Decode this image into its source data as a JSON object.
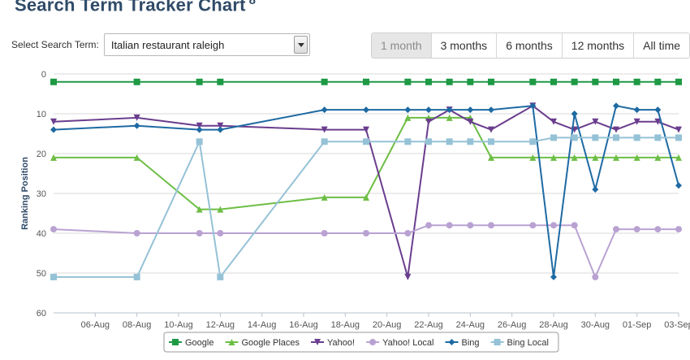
{
  "header": {
    "title": "Search Term Tracker Chart",
    "info_marker": "8"
  },
  "search": {
    "label": "Select Search Term:",
    "selected_value": "Italian restaurant raleigh"
  },
  "range": {
    "buttons": [
      "1 month",
      "3 months",
      "6 months",
      "12 months",
      "All time"
    ],
    "active": "1 month"
  },
  "chart_data": {
    "type": "line",
    "ylabel": "Ranking Position",
    "ylim": [
      0,
      60
    ],
    "y_reversed": true,
    "grid": true,
    "legend_position": "bottom",
    "xlim": [
      "2013-08-04",
      "2013-09-03"
    ],
    "x_ticks": [
      {
        "date": "2013-08-06",
        "label": "06-Aug"
      },
      {
        "date": "2013-08-08",
        "label": "08-Aug"
      },
      {
        "date": "2013-08-10",
        "label": "10-Aug"
      },
      {
        "date": "2013-08-12",
        "label": "12-Aug"
      },
      {
        "date": "2013-08-14",
        "label": "14-Aug"
      },
      {
        "date": "2013-08-16",
        "label": "16-Aug"
      },
      {
        "date": "2013-08-18",
        "label": "18-Aug"
      },
      {
        "date": "2013-08-20",
        "label": "20-Aug"
      },
      {
        "date": "2013-08-22",
        "label": "22-Aug"
      },
      {
        "date": "2013-08-24",
        "label": "24-Aug"
      },
      {
        "date": "2013-08-26",
        "label": "26-Aug"
      },
      {
        "date": "2013-08-28",
        "label": "28-Aug"
      },
      {
        "date": "2013-08-30",
        "label": "30-Aug"
      },
      {
        "date": "2013-09-01",
        "label": "01-Sep"
      },
      {
        "date": "2013-09-03",
        "label": "03-Sep"
      }
    ],
    "y_ticks": [
      0,
      10,
      20,
      30,
      40,
      50,
      60
    ],
    "x": [
      "2013-08-04",
      "2013-08-08",
      "2013-08-11",
      "2013-08-12",
      "2013-08-17",
      "2013-08-19",
      "2013-08-21",
      "2013-08-22",
      "2013-08-23",
      "2013-08-24",
      "2013-08-25",
      "2013-08-27",
      "2013-08-28",
      "2013-08-29",
      "2013-08-30",
      "2013-08-31",
      "2013-09-01",
      "2013-09-02",
      "2013-09-03"
    ],
    "series": [
      {
        "name": "Google",
        "color": "#1e9944",
        "marker": "square",
        "values": [
          2,
          2,
          2,
          2,
          2,
          2,
          2,
          2,
          2,
          2,
          2,
          2,
          2,
          2,
          2,
          2,
          2,
          2,
          2
        ]
      },
      {
        "name": "Google Places",
        "color": "#6dbe45",
        "marker": "triangle",
        "values": [
          21,
          21,
          34,
          34,
          31,
          31,
          11,
          11,
          11,
          11,
          21,
          21,
          21,
          21,
          21,
          21,
          21,
          21,
          21
        ]
      },
      {
        "name": "Yahoo!",
        "color": "#6a3d8e",
        "marker": "triangle-down",
        "values": [
          12,
          11,
          13,
          13,
          14,
          14,
          51,
          12,
          9,
          12,
          14,
          8,
          12,
          14,
          12,
          14,
          12,
          12,
          14
        ]
      },
      {
        "name": "Yahoo! Local",
        "color": "#b9a2d2",
        "marker": "circle",
        "values": [
          39,
          40,
          40,
          40,
          40,
          40,
          40,
          38,
          38,
          38,
          38,
          38,
          38,
          38,
          51,
          39,
          39,
          39,
          39
        ]
      },
      {
        "name": "Bing",
        "color": "#1e6aa3",
        "marker": "diamond",
        "values": [
          14,
          13,
          14,
          14,
          9,
          9,
          9,
          9,
          9,
          9,
          9,
          8,
          51,
          10,
          29,
          8,
          9,
          9,
          28
        ]
      },
      {
        "name": "Bing Local",
        "color": "#95c2d6",
        "marker": "square",
        "values": [
          51,
          51,
          17,
          51,
          17,
          17,
          17,
          17,
          17,
          17,
          17,
          17,
          16,
          16,
          16,
          16,
          16,
          16,
          16
        ]
      }
    ]
  }
}
